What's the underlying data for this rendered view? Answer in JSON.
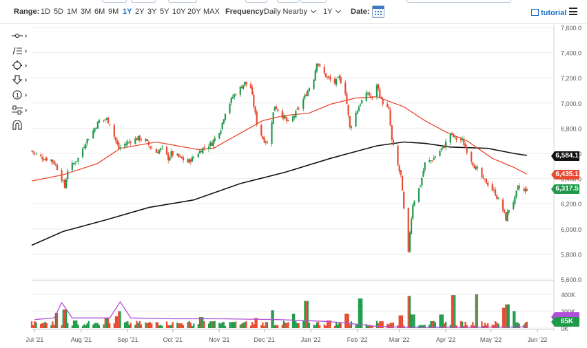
{
  "toolbar": {
    "range_label": "Range:",
    "ranges": [
      "1D",
      "5D",
      "1M",
      "3M",
      "6M",
      "9M",
      "1Y",
      "2Y",
      "3Y",
      "5Y",
      "10Y",
      "20Y",
      "MAX"
    ],
    "active_range": "1Y",
    "frequency_label": "Frequency:",
    "frequency_value": "Daily Nearby",
    "period_value": "1Y",
    "date_label": "Date:",
    "tutorial_label": "tutorial",
    "icons": [
      "calendar-icon",
      "tutorial-icon",
      "menu-icon"
    ]
  },
  "drawing_tools": [
    "crosshair-tool-icon",
    "trendline-tool-icon",
    "shape-tool-icon",
    "arrow-tool-icon",
    "annotation-tool-icon",
    "measure-tool-icon",
    "magnet-tool-icon"
  ],
  "badges": [
    {
      "name": "sma-200",
      "value": "6,584.1",
      "color": "#111111"
    },
    {
      "name": "sma-50",
      "value": "6,435.1",
      "color": "#e8492f"
    },
    {
      "name": "last-price",
      "value": "6,317.5",
      "color": "#1f9a4a"
    },
    {
      "name": "volume-avg",
      "value": "",
      "color": "#b14fd8"
    },
    {
      "name": "volume-last",
      "value": "65K",
      "color": "#1f9a4a"
    }
  ],
  "colors": {
    "up": "#1f9a4a",
    "down": "#e8492f",
    "sma50": "#e8492f",
    "sma200": "#111111",
    "vol_avg": "#b14fd8",
    "grid": "#ececec"
  },
  "chart_data": {
    "type": "candlestick",
    "title": "",
    "x_ticks": [
      "Jul '21",
      "Aug '21",
      "Sep '21",
      "Oct '21",
      "Nov '21",
      "Dec '21",
      "Jan '22",
      "Feb '22",
      "Mar '22",
      "Apr '22",
      "May '22",
      "Jun '22"
    ],
    "y_ticks": [
      "7,600.0",
      "7,400.0",
      "7,200.0",
      "7,000.0",
      "6,800.0",
      "6,600.0",
      "6,400.0",
      "6,200.0",
      "6,000.0",
      "5,800.0",
      "5,600.0"
    ],
    "ylim": [
      5600,
      7600
    ],
    "volume_ticks": [
      "400K",
      "200K",
      "0K"
    ],
    "volume_ylim": [
      0,
      480
    ],
    "close_series": [
      [
        "2021-06-29",
        6620
      ],
      [
        "2021-07-02",
        6590
      ],
      [
        "2021-07-07",
        6560
      ],
      [
        "2021-07-12",
        6550
      ],
      [
        "2021-07-15",
        6510
      ],
      [
        "2021-07-19",
        6400
      ],
      [
        "2021-07-21",
        6330
      ],
      [
        "2021-07-23",
        6470
      ],
      [
        "2021-07-27",
        6520
      ],
      [
        "2021-07-30",
        6560
      ],
      [
        "2021-08-04",
        6690
      ],
      [
        "2021-08-09",
        6780
      ],
      [
        "2021-08-13",
        6860
      ],
      [
        "2021-08-18",
        6870
      ],
      [
        "2021-08-20",
        6840
      ],
      [
        "2021-08-24",
        6700
      ],
      [
        "2021-08-26",
        6640
      ],
      [
        "2021-08-31",
        6680
      ],
      [
        "2021-09-03",
        6700
      ],
      [
        "2021-09-08",
        6720
      ],
      [
        "2021-09-13",
        6700
      ],
      [
        "2021-09-16",
        6650
      ],
      [
        "2021-09-20",
        6610
      ],
      [
        "2021-09-24",
        6640
      ],
      [
        "2021-09-28",
        6560
      ],
      [
        "2021-09-30",
        6600
      ],
      [
        "2021-10-05",
        6570
      ],
      [
        "2021-10-11",
        6530
      ],
      [
        "2021-10-15",
        6570
      ],
      [
        "2021-10-21",
        6640
      ],
      [
        "2021-10-27",
        6680
      ],
      [
        "2021-11-02",
        6800
      ],
      [
        "2021-11-05",
        6930
      ],
      [
        "2021-11-10",
        7050
      ],
      [
        "2021-11-15",
        7120
      ],
      [
        "2021-11-18",
        7160
      ],
      [
        "2021-11-22",
        7120
      ],
      [
        "2021-11-26",
        6840
      ],
      [
        "2021-11-30",
        6720
      ],
      [
        "2021-12-03",
        6680
      ],
      [
        "2021-12-08",
        6980
      ],
      [
        "2021-12-13",
        6900
      ],
      [
        "2021-12-17",
        6840
      ],
      [
        "2021-12-21",
        6900
      ],
      [
        "2021-12-28",
        7050
      ],
      [
        "2022-01-03",
        7200
      ],
      [
        "2022-01-05",
        7330
      ],
      [
        "2022-01-07",
        7280
      ],
      [
        "2022-01-12",
        7200
      ],
      [
        "2022-01-17",
        7160
      ],
      [
        "2022-01-20",
        7200
      ],
      [
        "2022-01-24",
        7090
      ],
      [
        "2022-01-27",
        6800
      ],
      [
        "2022-01-31",
        6920
      ],
      [
        "2022-02-03",
        7000
      ],
      [
        "2022-02-08",
        7080
      ],
      [
        "2022-02-11",
        7030
      ],
      [
        "2022-02-14",
        7150
      ],
      [
        "2022-02-17",
        7020
      ],
      [
        "2022-02-22",
        6940
      ],
      [
        "2022-02-24",
        6700
      ],
      [
        "2022-02-28",
        6500
      ],
      [
        "2022-03-02",
        6420
      ],
      [
        "2022-03-04",
        6150
      ],
      [
        "2022-03-07",
        5800
      ],
      [
        "2022-03-08",
        5980
      ],
      [
        "2022-03-10",
        6200
      ],
      [
        "2022-03-15",
        6350
      ],
      [
        "2022-03-18",
        6520
      ],
      [
        "2022-03-23",
        6550
      ],
      [
        "2022-03-28",
        6620
      ],
      [
        "2022-03-31",
        6660
      ],
      [
        "2022-04-04",
        6760
      ],
      [
        "2022-04-07",
        6720
      ],
      [
        "2022-04-12",
        6700
      ],
      [
        "2022-04-19",
        6520
      ],
      [
        "2022-04-22",
        6460
      ],
      [
        "2022-04-26",
        6390
      ],
      [
        "2022-04-29",
        6360
      ],
      [
        "2022-05-04",
        6280
      ],
      [
        "2022-05-09",
        6150
      ],
      [
        "2022-05-11",
        6080
      ],
      [
        "2022-05-13",
        6160
      ],
      [
        "2022-05-17",
        6240
      ],
      [
        "2022-05-19",
        6330
      ],
      [
        "2022-05-23",
        6300
      ],
      [
        "2022-05-25",
        6317.5
      ]
    ],
    "sma50": [
      [
        "2021-06-29",
        6380
      ],
      [
        "2021-07-20",
        6430
      ],
      [
        "2021-08-12",
        6520
      ],
      [
        "2021-08-27",
        6640
      ],
      [
        "2021-09-20",
        6690
      ],
      [
        "2021-10-18",
        6630
      ],
      [
        "2021-10-28",
        6640
      ],
      [
        "2021-11-12",
        6740
      ],
      [
        "2021-11-30",
        6860
      ],
      [
        "2021-12-14",
        6900
      ],
      [
        "2021-12-31",
        6920
      ],
      [
        "2022-01-14",
        6990
      ],
      [
        "2022-01-31",
        7040
      ],
      [
        "2022-02-14",
        7050
      ],
      [
        "2022-03-04",
        6970
      ],
      [
        "2022-03-18",
        6860
      ],
      [
        "2022-04-01",
        6770
      ],
      [
        "2022-04-15",
        6700
      ],
      [
        "2022-05-02",
        6560
      ],
      [
        "2022-05-16",
        6490
      ],
      [
        "2022-05-25",
        6435.1
      ]
    ],
    "sma200": [
      [
        "2021-06-29",
        5870
      ],
      [
        "2021-07-20",
        5980
      ],
      [
        "2021-08-17",
        6070
      ],
      [
        "2021-09-15",
        6170
      ],
      [
        "2021-10-15",
        6230
      ],
      [
        "2021-11-15",
        6360
      ],
      [
        "2021-12-15",
        6450
      ],
      [
        "2022-01-14",
        6560
      ],
      [
        "2022-02-14",
        6660
      ],
      [
        "2022-03-04",
        6690
      ],
      [
        "2022-03-18",
        6680
      ],
      [
        "2022-04-04",
        6650
      ],
      [
        "2022-04-29",
        6640
      ],
      [
        "2022-05-16",
        6600
      ],
      [
        "2022-05-25",
        6584.1
      ]
    ],
    "volume": [
      [
        "2021-07-08",
        60
      ],
      [
        "2021-07-16",
        180
      ],
      [
        "2021-07-21",
        220
      ],
      [
        "2021-07-28",
        90
      ],
      [
        "2021-08-11",
        60
      ],
      [
        "2021-08-18",
        120
      ],
      [
        "2021-08-25",
        140
      ],
      [
        "2021-08-27",
        200
      ],
      [
        "2021-09-08",
        60
      ],
      [
        "2021-09-20",
        70
      ],
      [
        "2021-10-06",
        55
      ],
      [
        "2021-10-20",
        130
      ],
      [
        "2021-10-27",
        80
      ],
      [
        "2021-11-10",
        70
      ],
      [
        "2021-11-26",
        120
      ],
      [
        "2021-12-06",
        210
      ],
      [
        "2021-12-20",
        170
      ],
      [
        "2021-12-29",
        320
      ],
      [
        "2022-01-13",
        90
      ],
      [
        "2022-01-25",
        170
      ],
      [
        "2022-02-03",
        350
      ],
      [
        "2022-02-17",
        80
      ],
      [
        "2022-03-02",
        150
      ],
      [
        "2022-03-07",
        380
      ],
      [
        "2022-03-10",
        160
      ],
      [
        "2022-03-29",
        160
      ],
      [
        "2022-04-06",
        390
      ],
      [
        "2022-04-22",
        400
      ],
      [
        "2022-05-09",
        240
      ],
      [
        "2022-05-12",
        280
      ],
      [
        "2022-05-16",
        200
      ],
      [
        "2022-05-25",
        65
      ]
    ],
    "volume_avg": [
      [
        "2021-07-01",
        100
      ],
      [
        "2021-07-14",
        120
      ],
      [
        "2021-07-19",
        300
      ],
      [
        "2021-07-26",
        120
      ],
      [
        "2021-08-20",
        120
      ],
      [
        "2021-08-27",
        310
      ],
      [
        "2021-09-03",
        120
      ],
      [
        "2021-10-01",
        110
      ],
      [
        "2021-11-01",
        110
      ],
      [
        "2021-12-10",
        100
      ],
      [
        "2022-01-10",
        80
      ],
      [
        "2022-01-24",
        60
      ],
      [
        "2022-02-14",
        20
      ],
      [
        "2022-03-03",
        10
      ],
      [
        "2022-04-01",
        10
      ],
      [
        "2022-04-30",
        12
      ],
      [
        "2022-05-25",
        14
      ]
    ]
  }
}
